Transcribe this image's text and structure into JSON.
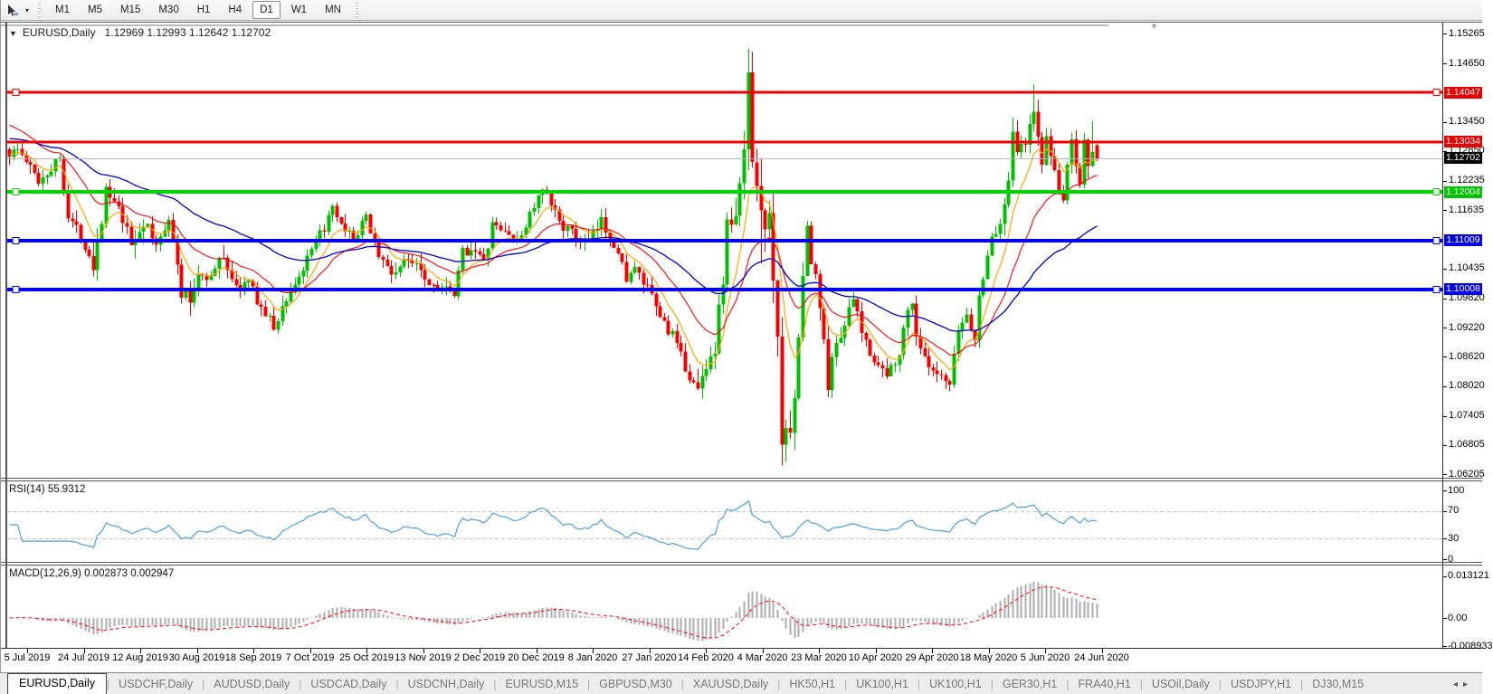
{
  "toolbar": {
    "timeframes": [
      "M1",
      "M5",
      "M15",
      "M30",
      "H1",
      "H4",
      "D1",
      "W1",
      "MN"
    ],
    "active_timeframe": "D1",
    "cursor_icon": "cursor-tool-icon",
    "dropdown_glyph": "▾"
  },
  "chart": {
    "title_symbol": "EURUSD,Daily",
    "title_ohlc": "1.12969 1.12993 1.12642 1.12702",
    "collapse_glyph": "▼",
    "shift_marker_glyph": "▼",
    "price_ticks": [
      "1.15265",
      "1.14650",
      "1.13450",
      "1.12850",
      "1.12235",
      "1.11635",
      "1.10435",
      "1.09820",
      "1.09220",
      "1.08620",
      "1.08020",
      "1.07405",
      "1.06805",
      "1.06205"
    ],
    "hlines": [
      {
        "price": 1.14047,
        "label": "1.14047",
        "color": "#f00000",
        "thickness": 3,
        "handles": true,
        "tag_bg": "#e80000"
      },
      {
        "price": 1.13034,
        "label": "1.13034",
        "color": "#f00000",
        "thickness": 3,
        "handles": false,
        "tag_bg": "#e80000"
      },
      {
        "price": 1.12004,
        "label": "1.12004",
        "color": "#00d300",
        "thickness": 4,
        "handles": true,
        "tag_bg": "#00c400"
      },
      {
        "price": 1.11009,
        "label": "1.11009",
        "color": "#0000f0",
        "thickness": 4,
        "handles": true,
        "tag_bg": "#0000e0"
      },
      {
        "price": 1.10008,
        "label": "1.10008",
        "color": "#0000f0",
        "thickness": 4,
        "handles": true,
        "tag_bg": "#0000e0"
      }
    ],
    "bid_line": {
      "price": 1.12702,
      "label": "1.12702",
      "color": "#b6b6b6",
      "tag_bg": "#000000"
    },
    "date_labels": [
      "5 Jul 2019",
      "24 Jul 2019",
      "12 Aug 2019",
      "30 Aug 2019",
      "18 Sep 2019",
      "7 Oct 2019",
      "25 Oct 2019",
      "13 Nov 2019",
      "2 Dec 2019",
      "20 Dec 2019",
      "8 Jan 2020",
      "27 Jan 2020",
      "14 Feb 2020",
      "4 Mar 2020",
      "23 Mar 2020",
      "10 Apr 2020",
      "29 Apr 2020",
      "18 May 2020",
      "5 Jun 2020",
      "24 Jun 2020"
    ],
    "colors": {
      "candle_up": "#00be00",
      "candle_down": "#f40000",
      "ma_fast": "#ffa600",
      "ma_mid": "#ff0000",
      "ma_slow": "#0000cc",
      "rsi_line": "#4da0dc",
      "macd_hist": "#aeaeae",
      "macd_signal": "#ff0000"
    }
  },
  "rsi": {
    "label": "RSI(14) 55.9312",
    "axis": [
      {
        "value": 100,
        "label": "100"
      },
      {
        "value": 70,
        "label": "70"
      },
      {
        "value": 30,
        "label": "30"
      },
      {
        "value": 0,
        "label": "0"
      }
    ],
    "dashed_levels": [
      70,
      30
    ]
  },
  "macd": {
    "label": "MACD(12,26,9) 0.002873 0.002947",
    "axis": [
      {
        "value": 0.013121,
        "label": "0.013121"
      },
      {
        "value": 0,
        "label": "0.00"
      },
      {
        "value": -0.008933,
        "label": "-0.008933"
      }
    ]
  },
  "tabs": [
    {
      "label": "EURUSD,Daily",
      "active": true
    },
    {
      "label": "USDCHF,Daily",
      "active": false
    },
    {
      "label": "AUDUSD,Daily",
      "active": false
    },
    {
      "label": "USDCAD,Daily",
      "active": false
    },
    {
      "label": "USDCNH,Daily",
      "active": false
    },
    {
      "label": "EURUSD,M15",
      "active": false
    },
    {
      "label": "GBPUSD,M30",
      "active": false
    },
    {
      "label": "XAUUSD,Daily",
      "active": false
    },
    {
      "label": "HK50,H1",
      "active": false
    },
    {
      "label": "UK100,H1",
      "active": false
    },
    {
      "label": "UK100,H1",
      "active": false
    },
    {
      "label": "GER30,H1",
      "active": false
    },
    {
      "label": "FRA40,H1",
      "active": false
    },
    {
      "label": "USOil,Daily",
      "active": false
    },
    {
      "label": "USDJPY,H1",
      "active": false
    },
    {
      "label": "DJ30,M15",
      "active": false
    }
  ],
  "tabs_nav": {
    "left": "◂",
    "right": "▸"
  },
  "chart_data": {
    "type": "candlestick",
    "symbol": "EURUSD",
    "timeframe": "Daily",
    "n_bars": 260,
    "current_bar": {
      "open": 1.12969,
      "high": 1.12993,
      "low": 1.12642,
      "close": 1.12702
    },
    "price_anchors": [
      [
        0,
        1.128,
        1
      ],
      [
        2,
        1.1289,
        1
      ],
      [
        5,
        1.125,
        1
      ],
      [
        7,
        1.1224,
        1
      ],
      [
        10,
        1.125,
        1
      ],
      [
        12,
        1.1272,
        1
      ],
      [
        14,
        1.1152,
        1.5
      ],
      [
        17,
        1.111,
        1
      ],
      [
        19,
        1.1075,
        1.5
      ],
      [
        20,
        1.1055,
        2
      ],
      [
        23,
        1.12,
        1.5
      ],
      [
        26,
        1.1163,
        1
      ],
      [
        29,
        1.1092,
        1.5
      ],
      [
        32,
        1.114,
        1.5
      ],
      [
        35,
        1.1088,
        1
      ],
      [
        38,
        1.1152,
        1
      ],
      [
        41,
        1.0992,
        1.5
      ],
      [
        43,
        1.0975,
        1.5
      ],
      [
        45,
        1.1035,
        1
      ],
      [
        48,
        1.1025,
        1
      ],
      [
        51,
        1.1072,
        1.5
      ],
      [
        54,
        1.1002,
        1
      ],
      [
        57,
        1.1015,
        1
      ],
      [
        60,
        1.0962,
        1
      ],
      [
        63,
        1.0922,
        1.5
      ],
      [
        66,
        1.0982,
        1
      ],
      [
        70,
        1.1042,
        1
      ],
      [
        74,
        1.1112,
        1
      ],
      [
        77,
        1.1162,
        1
      ],
      [
        80,
        1.1112,
        1
      ],
      [
        83,
        1.1112,
        1
      ],
      [
        85,
        1.115,
        1
      ],
      [
        88,
        1.1072,
        1
      ],
      [
        91,
        1.1032,
        1
      ],
      [
        94,
        1.1056,
        1
      ],
      [
        97,
        1.1062,
        1
      ],
      [
        100,
        1.1012,
        1
      ],
      [
        103,
        1.1006,
        1
      ],
      [
        106,
        1.0986,
        1
      ],
      [
        108,
        1.1078,
        1
      ],
      [
        111,
        1.1086,
        1
      ],
      [
        113,
        1.1052,
        1
      ],
      [
        115,
        1.1132,
        1
      ],
      [
        117,
        1.1122,
        1
      ],
      [
        119,
        1.1116,
        1
      ],
      [
        121,
        1.1092,
        1
      ],
      [
        124,
        1.1156,
        1
      ],
      [
        127,
        1.1202,
        1
      ],
      [
        129,
        1.1172,
        1
      ],
      [
        132,
        1.1132,
        1
      ],
      [
        135,
        1.1106,
        1
      ],
      [
        138,
        1.1096,
        1
      ],
      [
        141,
        1.114,
        1
      ],
      [
        144,
        1.1096,
        1
      ],
      [
        147,
        1.1026,
        1
      ],
      [
        149,
        1.104,
        1
      ],
      [
        152,
        1.1,
        1
      ],
      [
        155,
        1.0945,
        1
      ],
      [
        158,
        1.0905,
        1
      ],
      [
        161,
        1.084,
        1
      ],
      [
        164,
        1.079,
        1.5
      ],
      [
        166,
        1.085,
        1.5
      ],
      [
        168,
        1.088,
        1.5
      ],
      [
        170,
        1.1026,
        2
      ],
      [
        171,
        1.1134,
        2
      ],
      [
        173,
        1.114,
        2
      ],
      [
        175,
        1.1283,
        2
      ],
      [
        176,
        1.145,
        2.5
      ],
      [
        177,
        1.1281,
        2.5
      ],
      [
        179,
        1.1184,
        3
      ],
      [
        180,
        1.1106,
        2.5
      ],
      [
        181,
        1.118,
        2.5
      ],
      [
        182,
        1.0995,
        2.5
      ],
      [
        183,
        1.0916,
        2.5
      ],
      [
        184,
        1.0692,
        2.5
      ],
      [
        185,
        1.0695,
        2
      ],
      [
        186,
        1.0727,
        2
      ],
      [
        187,
        1.0789,
        2
      ],
      [
        188,
        1.0882,
        2
      ],
      [
        189,
        1.103,
        2
      ],
      [
        190,
        1.1141,
        2
      ],
      [
        191,
        1.1047,
        1.5
      ],
      [
        192,
        1.1031,
        1.5
      ],
      [
        193,
        1.0964,
        1.5
      ],
      [
        195,
        1.0808,
        1.5
      ],
      [
        197,
        1.0893,
        1.5
      ],
      [
        199,
        1.093,
        1
      ],
      [
        201,
        1.098,
        1
      ],
      [
        203,
        1.091,
        1
      ],
      [
        206,
        1.0857,
        1
      ],
      [
        209,
        1.0821,
        1.5
      ],
      [
        212,
        1.0875,
        1
      ],
      [
        214,
        1.0955,
        1
      ],
      [
        215,
        1.098,
        1
      ],
      [
        216,
        1.0905,
        1
      ],
      [
        219,
        1.0834,
        1
      ],
      [
        222,
        1.0815,
        1
      ],
      [
        224,
        1.0801,
        1
      ],
      [
        226,
        1.0916,
        1
      ],
      [
        228,
        1.0949,
        1
      ],
      [
        230,
        1.0896,
        1
      ],
      [
        231,
        1.0982,
        1
      ],
      [
        233,
        1.1076,
        1
      ],
      [
        234,
        1.1101,
        1
      ],
      [
        236,
        1.1134,
        1
      ],
      [
        238,
        1.1234,
        1.5
      ],
      [
        239,
        1.1337,
        1.5
      ],
      [
        240,
        1.129,
        1.5
      ],
      [
        242,
        1.1294,
        1
      ],
      [
        243,
        1.1341,
        1
      ],
      [
        244,
        1.1373,
        1.5
      ],
      [
        245,
        1.1301,
        1.5
      ],
      [
        246,
        1.1256,
        1
      ],
      [
        247,
        1.1323,
        1
      ],
      [
        248,
        1.1264,
        1
      ],
      [
        250,
        1.1206,
        1
      ],
      [
        251,
        1.1177,
        1
      ],
      [
        252,
        1.126,
        1
      ],
      [
        253,
        1.1308,
        1
      ],
      [
        254,
        1.1251,
        1
      ],
      [
        255,
        1.1218,
        1
      ],
      [
        256,
        1.131,
        1.5
      ],
      [
        257,
        1.1245,
        1.5
      ],
      [
        258,
        1.1297,
        1.5
      ],
      [
        259,
        1.127,
        0.5
      ]
    ],
    "overrides": {
      "20": {
        "l": 1.1027
      },
      "176": {
        "h": 1.1495
      },
      "179": {
        "l": 1.1054
      },
      "184": {
        "l": 1.0638
      },
      "244": {
        "h": 1.1422
      },
      "258": {
        "h": 1.1346
      },
      "259": {
        "o": 1.12969,
        "h": 1.12993,
        "l": 1.12642,
        "c": 1.12702
      }
    },
    "indicators": {
      "ma_periods": {
        "fast": 8,
        "mid": 21,
        "slow": 55
      },
      "rsi_period": 14,
      "macd": [
        12,
        26,
        9
      ]
    }
  }
}
